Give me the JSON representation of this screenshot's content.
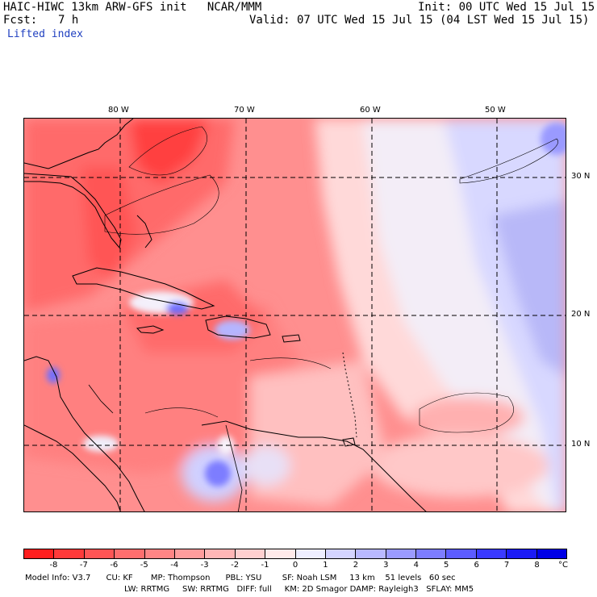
{
  "header": {
    "model_title": "HAIC-HIWC 13km ARW-GFS init   NCAR/MMM",
    "init": "Init: 00 UTC Wed 15 Jul 15",
    "forecast_label": "Fcst:",
    "forecast_hours": "7 h",
    "valid": "Valid: 07 UTC Wed 15 Jul 15 (04 LST Wed 15 Jul 15)",
    "field": "Lifted index"
  },
  "map": {
    "lon_labels": [
      "80 W",
      "70 W",
      "60 W",
      "50 W"
    ],
    "lat_labels": [
      "30 N",
      "20 N",
      "10 N"
    ]
  },
  "colorbar": {
    "unit": "°C",
    "labels": [
      "-8",
      "-7",
      "-6",
      "-5",
      "-4",
      "-3",
      "-2",
      "-1",
      "0",
      "1",
      "2",
      "3",
      "4",
      "5",
      "6",
      "7",
      "8"
    ],
    "colors": [
      "#ff1f1f",
      "#ff3a3a",
      "#ff5555",
      "#ff6e6e",
      "#ff8585",
      "#ff9d9d",
      "#ffb6b6",
      "#ffd0d0",
      "#ffeaea",
      "#eeeeff",
      "#d4d4ff",
      "#b9b9ff",
      "#9b9bff",
      "#7d7dff",
      "#5c5cff",
      "#3a3aff",
      "#1b1bf5",
      "#0000e6"
    ]
  },
  "model_info": {
    "line1": "Model Info: V3.7      CU: KF       MP: Thompson      PBL: YSU        SF: Noah LSM     13 km    51 levels   60 sec",
    "line2": "LW: RRTMG     SW: RRTMG   DIFF: full     KM: 2D Smagor DAMP: Rayleigh3   SFLAY: MM5"
  }
}
